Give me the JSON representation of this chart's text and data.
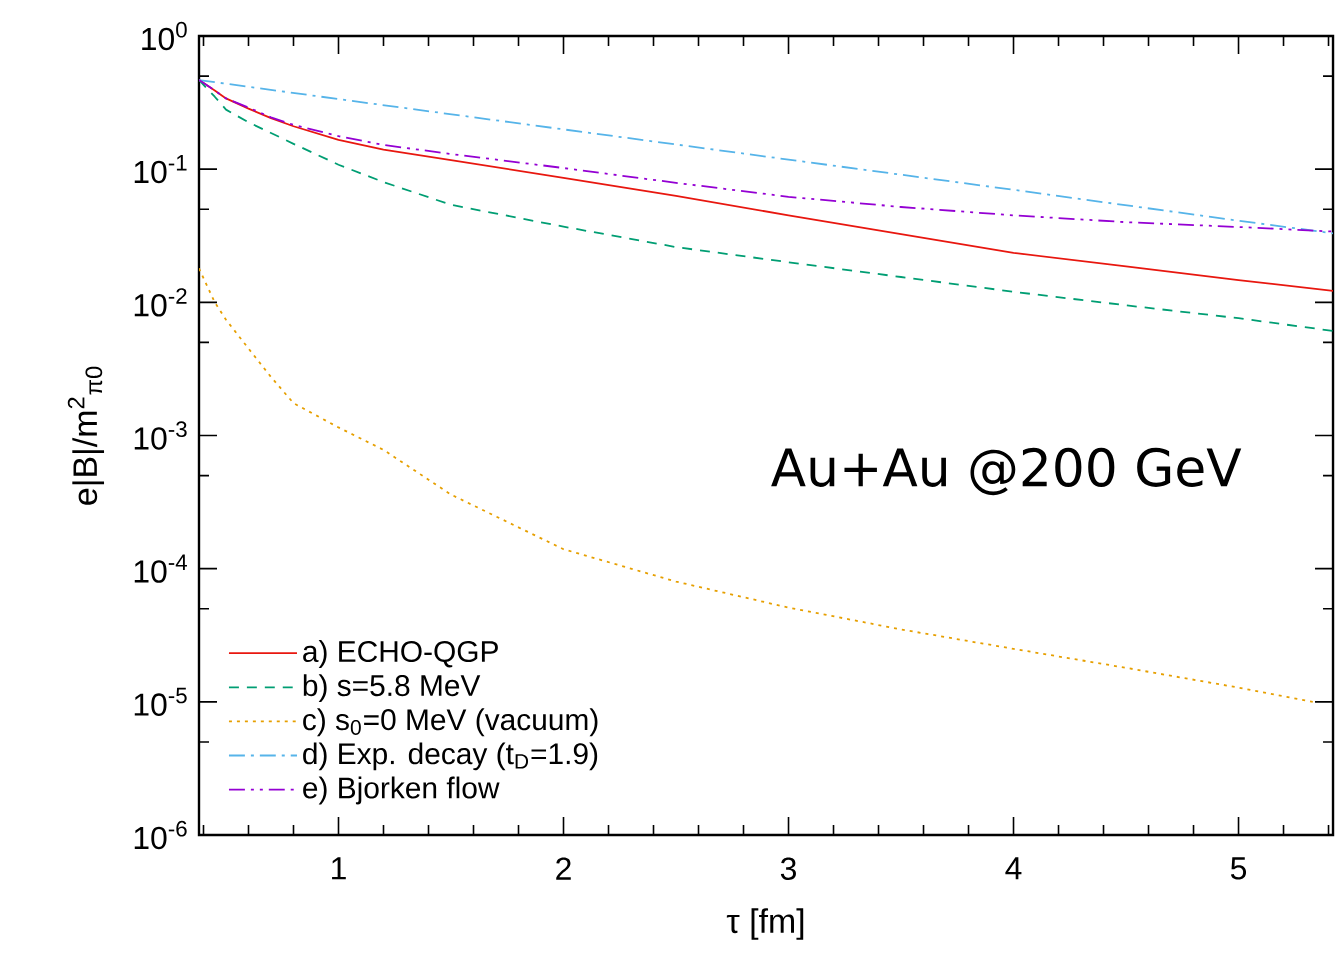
{
  "chart_data": {
    "type": "line",
    "xlabel": "τ [fm]",
    "ylabel": "e|B|/m$^{2}$$_{π0}$",
    "log": "y",
    "grid": false,
    "legend": "bottom left",
    "xlim": [
      0.38,
      5.42
    ],
    "ylim": [
      1e-06,
      1
    ],
    "xticks": [
      {
        "value": 0.4,
        "label": null
      },
      {
        "value": 0.6,
        "label": null
      },
      {
        "value": 0.8,
        "label": null
      },
      1,
      {
        "value": 1.2,
        "label": null
      },
      {
        "value": 1.4,
        "label": null
      },
      {
        "value": 1.6,
        "label": null
      },
      {
        "value": 1.8,
        "label": null
      },
      2,
      {
        "value": 2.2,
        "label": null
      },
      {
        "value": 2.4,
        "label": null
      },
      {
        "value": 2.6,
        "label": null
      },
      {
        "value": 2.8,
        "label": null
      },
      3,
      {
        "value": 3.2,
        "label": null
      },
      {
        "value": 3.4,
        "label": null
      },
      {
        "value": 3.6,
        "label": null
      },
      {
        "value": 3.8,
        "label": null
      },
      4,
      {
        "value": 4.2,
        "label": null
      },
      {
        "value": 4.4,
        "label": null
      },
      {
        "value": 4.6,
        "label": null
      },
      {
        "value": 4.8,
        "label": null
      },
      5,
      {
        "value": 5.2,
        "label": null
      },
      {
        "value": 5.4,
        "label": null
      }
    ],
    "yticks": [
      {
        "value": 1e-06,
        "label": "10$^{-6}$"
      },
      {
        "value": 5e-06,
        "label": null
      },
      {
        "value": 1e-05,
        "label": "10$^{-5}$"
      },
      {
        "value": 5e-05,
        "label": null
      },
      {
        "value": 0.0001,
        "label": "10$^{-4}$"
      },
      {
        "value": 0.0005,
        "label": null
      },
      {
        "value": 0.001,
        "label": "10$^{-3}$"
      },
      {
        "value": 0.005,
        "label": null
      },
      {
        "value": 0.01,
        "label": "10$^{-2}$"
      },
      {
        "value": 0.05,
        "label": null
      },
      {
        "value": 0.1,
        "label": "10$^{-1}$"
      },
      {
        "value": 0.5,
        "label": null
      },
      {
        "value": 1,
        "label": "10$^{0}$"
      }
    ],
    "annotations": [
      "Au+Au @200 GeV"
    ],
    "series": [
      {
        "name": "a) ECHO-QGP",
        "color": "#e8170f",
        "line_style": "solid",
        "x": [
          0.38,
          0.45,
          0.5,
          0.6,
          0.7,
          0.8,
          1,
          1.2,
          1.5,
          2,
          2.5,
          3,
          3.5,
          4,
          4.5,
          5,
          5.42
        ],
        "values": [
          0.467,
          0.39,
          0.34,
          0.285,
          0.242,
          0.21,
          0.166,
          0.14,
          0.117,
          0.086,
          0.063,
          0.045,
          0.0325,
          0.0235,
          0.0186,
          0.0147,
          0.0122
        ]
      },
      {
        "name": "b) s=5.8 MeV",
        "color": "#009e73",
        "line_style": "dashed",
        "x": [
          0.38,
          0.45,
          0.5,
          0.6,
          0.7,
          0.8,
          1,
          1.2,
          1.5,
          2,
          2.5,
          3,
          3.5,
          4,
          4.5,
          5,
          5.42
        ],
        "values": [
          0.467,
          0.35,
          0.28,
          0.225,
          0.187,
          0.155,
          0.108,
          0.08,
          0.054,
          0.037,
          0.026,
          0.02,
          0.0155,
          0.012,
          0.0095,
          0.0076,
          0.0061
        ]
      },
      {
        "name": "c) s$_{0}$=0 MeV (vacuum)",
        "color": "#e69f00",
        "line_style": "dotted",
        "x": [
          0.38,
          0.45,
          0.5,
          0.6,
          0.7,
          0.8,
          1,
          1.2,
          1.5,
          2,
          2.5,
          3,
          3.5,
          4,
          4.5,
          5,
          5.33
        ],
        "values": [
          0.018,
          0.01,
          0.0074,
          0.0045,
          0.00275,
          0.00175,
          0.00115,
          0.00078,
          0.00036,
          0.00014,
          8e-05,
          5.1e-05,
          3.5e-05,
          2.5e-05,
          1.8e-05,
          1.28e-05,
          1e-05
        ]
      },
      {
        "name": "d) Exp. decay (t$_{D}$=1.9)",
        "color": "#56b4e9",
        "line_style": "dashdot",
        "x": [
          0.38,
          1,
          2,
          3,
          4,
          5,
          5.42
        ],
        "values": [
          0.467,
          0.336,
          0.199,
          0.118,
          0.07,
          0.041,
          0.033
        ]
      },
      {
        "name": "e) Bjorken flow",
        "color": "#9400d3",
        "line_style": "dashdotdot",
        "x": [
          0.38,
          0.45,
          0.5,
          0.6,
          0.7,
          0.8,
          1,
          1.2,
          1.5,
          2,
          2.5,
          3,
          3.5,
          4,
          4.5,
          5,
          5.42
        ],
        "values": [
          0.467,
          0.39,
          0.34,
          0.29,
          0.245,
          0.215,
          0.177,
          0.152,
          0.13,
          0.102,
          0.079,
          0.062,
          0.052,
          0.045,
          0.04,
          0.0368,
          0.034
        ]
      }
    ]
  }
}
